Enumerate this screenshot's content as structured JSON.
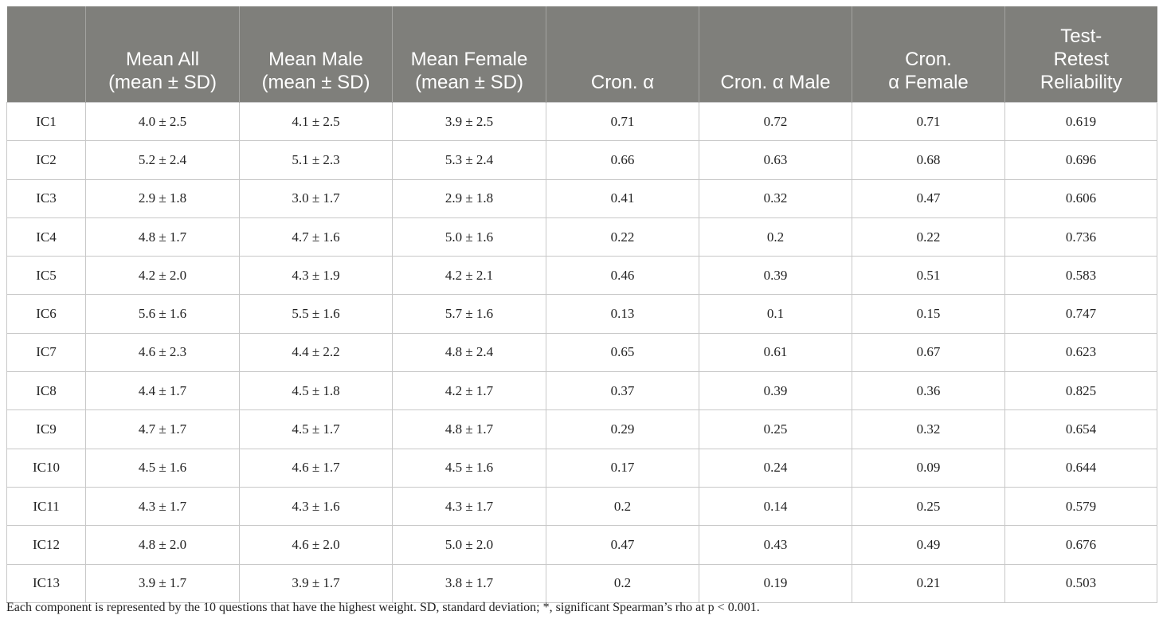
{
  "table": {
    "headers": [
      {
        "lines": [
          ""
        ]
      },
      {
        "lines": [
          "Mean All",
          "(mean ± SD)"
        ]
      },
      {
        "lines": [
          "Mean Male",
          "(mean ± SD)"
        ]
      },
      {
        "lines": [
          "Mean Female",
          "(mean ± SD)"
        ]
      },
      {
        "lines": [
          "Cron. α"
        ]
      },
      {
        "lines": [
          "Cron. α Male"
        ]
      },
      {
        "lines": [
          "Cron.",
          "α Female"
        ]
      },
      {
        "lines": [
          "Test-",
          "Retest",
          "Reliability"
        ]
      }
    ],
    "rows": [
      [
        "IC1",
        "4.0 ± 2.5",
        "4.1 ± 2.5",
        "3.9 ± 2.5",
        "0.71",
        "0.72",
        "0.71",
        "0.619"
      ],
      [
        "IC2",
        "5.2 ± 2.4",
        "5.1 ± 2.3",
        "5.3 ± 2.4",
        "0.66",
        "0.63",
        "0.68",
        "0.696"
      ],
      [
        "IC3",
        "2.9 ± 1.8",
        "3.0 ± 1.7",
        "2.9 ± 1.8",
        "0.41",
        "0.32",
        "0.47",
        "0.606"
      ],
      [
        "IC4",
        "4.8 ± 1.7",
        "4.7 ± 1.6",
        "5.0 ± 1.6",
        "0.22",
        "0.2",
        "0.22",
        "0.736"
      ],
      [
        "IC5",
        "4.2 ± 2.0",
        "4.3 ± 1.9",
        "4.2 ± 2.1",
        "0.46",
        "0.39",
        "0.51",
        "0.583"
      ],
      [
        "IC6",
        "5.6 ± 1.6",
        "5.5 ± 1.6",
        "5.7 ± 1.6",
        "0.13",
        "0.1",
        "0.15",
        "0.747"
      ],
      [
        "IC7",
        "4.6 ± 2.3",
        "4.4 ± 2.2",
        "4.8 ± 2.4",
        "0.65",
        "0.61",
        "0.67",
        "0.623"
      ],
      [
        "IC8",
        "4.4 ± 1.7",
        "4.5 ± 1.8",
        "4.2 ± 1.7",
        "0.37",
        "0.39",
        "0.36",
        "0.825"
      ],
      [
        "IC9",
        "4.7 ± 1.7",
        "4.5 ± 1.7",
        "4.8 ± 1.7",
        "0.29",
        "0.25",
        "0.32",
        "0.654"
      ],
      [
        "IC10",
        "4.5 ± 1.6",
        "4.6 ± 1.7",
        "4.5 ± 1.6",
        "0.17",
        "0.24",
        "0.09",
        "0.644"
      ],
      [
        "IC11",
        "4.3 ± 1.7",
        "4.3 ± 1.6",
        "4.3 ± 1.7",
        "0.2",
        "0.14",
        "0.25",
        "0.579"
      ],
      [
        "IC12",
        "4.8 ± 2.0",
        "4.6 ± 2.0",
        "5.0 ± 2.0",
        "0.47",
        "0.43",
        "0.49",
        "0.676"
      ],
      [
        "IC13",
        "3.9 ± 1.7",
        "3.9 ± 1.7",
        "3.8 ± 1.7",
        "0.2",
        "0.19",
        "0.21",
        "0.503"
      ]
    ]
  },
  "footnote": "Each component is represented by the 10 questions that have the highest weight. SD, standard deviation; *, significant Spearman’s rho at p < 0.001."
}
